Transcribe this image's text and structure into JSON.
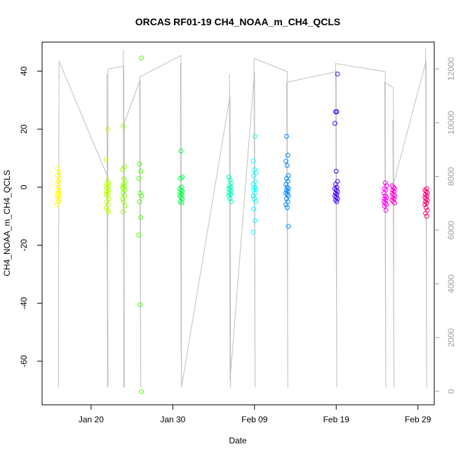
{
  "chart_data": {
    "type": "scatter",
    "title": "ORCAS RF01-19 CH4_NOAA_m_CH4_QCLS",
    "xlabel": "Date",
    "ylabel": "CH4_NOAA_m_CH4_QCLS",
    "xlim": [
      "2016-01-14",
      "2016-03-02"
    ],
    "ylim": [
      -75,
      50
    ],
    "x_ticks": [
      {
        "date": "2016-01-20",
        "label": "Jan 20"
      },
      {
        "date": "2016-01-30",
        "label": "Jan 30"
      },
      {
        "date": "2016-02-09",
        "label": "Feb 09"
      },
      {
        "date": "2016-02-19",
        "label": "Feb 19"
      },
      {
        "date": "2016-02-29",
        "label": "Feb 29"
      }
    ],
    "y_ticks": [
      -60,
      -40,
      -20,
      0,
      20,
      40
    ],
    "right_axis": {
      "ylim": [
        -500,
        13000
      ],
      "ticks": [
        0,
        2000,
        4000,
        6000,
        8000,
        10000,
        12000
      ],
      "color": "#a0a0a0"
    },
    "series": [
      {
        "date": "2016-01-16",
        "color": "#ffff00",
        "values": [
          -6,
          -5,
          -4,
          -3.5,
          -3,
          -2.5,
          -2,
          -1.5,
          -1,
          0,
          1,
          2,
          3,
          4,
          5,
          6.5
        ]
      },
      {
        "date": "2016-01-22",
        "color": "#bbff00",
        "values": [
          20,
          9.5,
          2.5,
          1.5,
          1,
          0.5,
          0,
          -0.5,
          -1,
          -1.5,
          -2,
          -2.5,
          -3,
          -4,
          -5,
          -6,
          -7,
          -8,
          -8.5
        ]
      },
      {
        "date": "2016-01-24",
        "color": "#88ff00",
        "values": [
          21,
          7,
          6,
          3,
          2,
          1,
          0.5,
          0,
          -0.5,
          -1,
          -2,
          -3,
          -4,
          -5,
          -6.5,
          -8.5
        ]
      },
      {
        "date": "2016-01-26",
        "color": "#44ff00",
        "values": [
          44.5,
          8,
          5.5,
          3,
          -2,
          -3,
          -5,
          -10.5,
          -16.5,
          -40.5,
          -70.5
        ]
      },
      {
        "date": "2016-01-31",
        "color": "#00ff44",
        "values": [
          12.5,
          3.5,
          3,
          0,
          -0.5,
          -1,
          -1.5,
          -2,
          -2.5,
          -3,
          -3.5,
          -4,
          -5,
          -5.5
        ]
      },
      {
        "date": "2016-02-06",
        "color": "#00ffbb",
        "values": [
          3.5,
          2.5,
          1.5,
          0.5,
          0,
          -0.5,
          -1,
          -1.5,
          -2,
          -2.5,
          -3,
          -4,
          -5
        ]
      },
      {
        "date": "2016-02-09",
        "color": "#00ffff",
        "values": [
          17.5,
          9,
          6,
          5,
          4,
          2,
          1,
          0,
          -0.5,
          -1,
          -2,
          -3,
          -4,
          -5,
          -7.5,
          -11.5,
          -15.5
        ]
      },
      {
        "date": "2016-02-13",
        "color": "#0088ff",
        "values": [
          17.5,
          11,
          9,
          7.5,
          4,
          3,
          2,
          1,
          0,
          -0.5,
          -1,
          -1.5,
          -2,
          -2.5,
          -3,
          -4,
          -5,
          -6,
          -7,
          -13.5
        ]
      },
      {
        "date": "2016-02-19",
        "color": "#4400ff",
        "values": [
          39,
          26,
          26,
          22,
          5.5,
          2,
          1,
          0,
          -0.5,
          -1,
          -1.5,
          -2,
          -2.5,
          -3,
          -3.5,
          -4,
          -4.5,
          -5
        ]
      },
      {
        "date": "2016-02-25",
        "color": "#ff00ff",
        "values": [
          1.5,
          0.5,
          -0.5,
          -1,
          -2,
          -3,
          -3.5,
          -4,
          -4.5,
          -5,
          -5.5,
          -6,
          -6.5,
          -8
        ]
      },
      {
        "date": "2016-02-26",
        "color": "#ff00cc",
        "values": [
          0.5,
          0,
          -0.5,
          -1,
          -1.5,
          -2,
          -2.5,
          -3,
          -3.5,
          -4,
          -4.5,
          -5,
          -5.5
        ]
      },
      {
        "date": "2016-03-01",
        "color": "#ff0077",
        "values": [
          -0.5,
          -1,
          -1.5,
          -2,
          -2.5,
          -3,
          -3.5,
          -4,
          -4.5,
          -5,
          -5.5,
          -6,
          -7,
          -8,
          -9,
          -10
        ]
      }
    ],
    "altitude_line": {
      "color": "#c0c0c0",
      "axis": "right",
      "points": [
        [
          "2016-01-16",
          150
        ],
        [
          "2016-01-16",
          12300
        ],
        [
          "2016-01-22",
          8000
        ],
        [
          "2016-01-22",
          150
        ],
        [
          "2016-01-22",
          11800
        ],
        [
          "2016-01-22",
          150
        ],
        [
          "2016-01-22",
          12000
        ],
        [
          "2016-01-24",
          12100
        ],
        [
          "2016-01-24",
          150
        ],
        [
          "2016-01-24",
          12700
        ],
        [
          "2016-01-24",
          150
        ],
        [
          "2016-01-24",
          10000
        ],
        [
          "2016-01-26",
          11600
        ],
        [
          "2016-01-26",
          150
        ],
        [
          "2016-01-26",
          11700
        ],
        [
          "2016-01-31",
          12500
        ],
        [
          "2016-01-31",
          150
        ],
        [
          "2016-01-31",
          12200
        ],
        [
          "2016-01-31",
          2000
        ],
        [
          "2016-01-31",
          150
        ],
        [
          "2016-02-06",
          11000
        ],
        [
          "2016-02-06",
          150
        ],
        [
          "2016-02-06",
          11800
        ],
        [
          "2016-02-06",
          400
        ],
        [
          "2016-02-09",
          11900
        ],
        [
          "2016-02-09",
          150
        ],
        [
          "2016-02-09",
          12400
        ],
        [
          "2016-02-13",
          11900
        ],
        [
          "2016-02-13",
          150
        ],
        [
          "2016-02-13",
          11500
        ],
        [
          "2016-02-19",
          11900
        ],
        [
          "2016-02-19",
          150
        ],
        [
          "2016-02-19",
          12200
        ],
        [
          "2016-02-25",
          11900
        ],
        [
          "2016-02-25",
          150
        ],
        [
          "2016-02-25",
          11500
        ],
        [
          "2016-02-26",
          11300
        ],
        [
          "2016-02-26",
          150
        ],
        [
          "2016-02-26",
          10100
        ],
        [
          "2016-02-26",
          7700
        ],
        [
          "2016-03-01",
          12300
        ],
        [
          "2016-03-01",
          150
        ],
        [
          "2016-03-01",
          12800
        ]
      ]
    }
  }
}
